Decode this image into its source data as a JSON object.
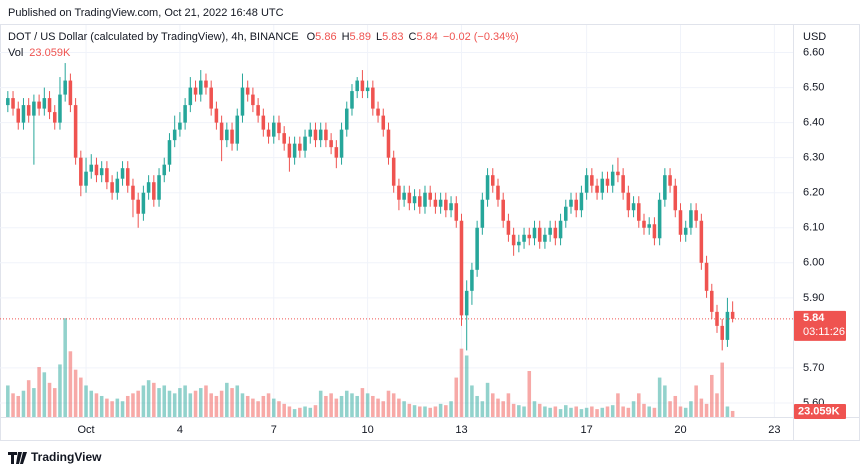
{
  "header": {
    "published": "Published on TradingView.com, Oct 21, 2022 16:48 UTC"
  },
  "footer": {
    "brand": "TradingView"
  },
  "chart_data": {
    "type": "candlestick",
    "title": "DOT / US Dollar (calculated by TradingView), 4h, BINANCE",
    "ohlc_labels": [
      "O",
      "H",
      "L",
      "C"
    ],
    "change_label": "−0.02 (−0.34%)",
    "volume_title": "Vol",
    "last_volume_label": "23.059K",
    "countdown": "03:11:26",
    "currency": "USD",
    "up_color": "#26a69a",
    "down_color": "#ef5350",
    "grid": true,
    "xlim": [
      -1.5,
      150
    ],
    "xticks": [
      {
        "value": 15,
        "label": "Oct"
      },
      {
        "value": 33,
        "label": "4"
      },
      {
        "value": 51,
        "label": "7"
      },
      {
        "value": 69,
        "label": "10"
      },
      {
        "value": 87,
        "label": "13"
      },
      {
        "value": 111,
        "label": "17"
      },
      {
        "value": 129,
        "label": "20"
      },
      {
        "value": 147,
        "label": "23"
      }
    ],
    "ylim": [
      5.56,
      6.67
    ],
    "yticks": [
      {
        "value": 6.6,
        "label": "6.60"
      },
      {
        "value": 6.5,
        "label": "6.50"
      },
      {
        "value": 6.4,
        "label": "6.40"
      },
      {
        "value": 6.3,
        "label": "6.30"
      },
      {
        "value": 6.2,
        "label": "6.20"
      },
      {
        "value": 6.1,
        "label": "6.10"
      },
      {
        "value": 6.0,
        "label": "6.00"
      },
      {
        "value": 5.9,
        "label": "5.90"
      },
      {
        "value": 5.7,
        "label": "5.70"
      },
      {
        "value": 5.6,
        "label": "5.60"
      }
    ],
    "volume_lim": [
      0,
      1480000
    ],
    "open": [
      6.45,
      6.47,
      6.44,
      6.4,
      6.45,
      6.42,
      6.46,
      6.44,
      6.47,
      6.43,
      6.4,
      6.48,
      6.52,
      6.45,
      6.3,
      6.22,
      6.26,
      6.28,
      6.25,
      6.27,
      6.23,
      6.2,
      6.24,
      6.27,
      6.22,
      6.18,
      6.14,
      6.2,
      6.23,
      6.18,
      6.25,
      6.28,
      6.35,
      6.38,
      6.4,
      6.45,
      6.5,
      6.48,
      6.52,
      6.5,
      6.44,
      6.4,
      6.35,
      6.38,
      6.34,
      6.42,
      6.5,
      6.48,
      6.45,
      6.42,
      6.38,
      6.36,
      6.4,
      6.37,
      6.34,
      6.3,
      6.34,
      6.32,
      6.36,
      6.38,
      6.35,
      6.38,
      6.35,
      6.33,
      6.3,
      6.38,
      6.44,
      6.49,
      6.52,
      6.49,
      6.5,
      6.44,
      6.42,
      6.38,
      6.3,
      6.22,
      6.18,
      6.2,
      6.17,
      6.19,
      6.16,
      6.2,
      6.18,
      6.16,
      6.18,
      6.15,
      6.17,
      6.12,
      5.85,
      5.92,
      5.98,
      6.1,
      6.18,
      6.25,
      6.22,
      6.18,
      6.12,
      6.08,
      6.05,
      6.06,
      6.08,
      6.07,
      6.1,
      6.06,
      6.08,
      6.1,
      6.07,
      6.12,
      6.16,
      6.18,
      6.15,
      6.2,
      6.25,
      6.22,
      6.2,
      6.24,
      6.22,
      6.26,
      6.25,
      6.2,
      6.15,
      6.17,
      6.12,
      6.1,
      6.11,
      6.07,
      6.18,
      6.25,
      6.22,
      6.15,
      6.08,
      6.1,
      6.15,
      6.12,
      6.0,
      5.92,
      5.86,
      5.82,
      5.78,
      5.86
    ],
    "high": [
      6.49,
      6.49,
      6.46,
      6.47,
      6.47,
      6.48,
      6.48,
      6.5,
      6.49,
      6.45,
      6.53,
      6.57,
      6.54,
      6.47,
      6.32,
      6.3,
      6.31,
      6.3,
      6.29,
      6.29,
      6.25,
      6.26,
      6.29,
      6.29,
      6.24,
      6.2,
      6.22,
      6.25,
      6.25,
      6.27,
      6.3,
      6.37,
      6.42,
      6.43,
      6.47,
      6.53,
      6.52,
      6.55,
      6.54,
      6.52,
      6.46,
      6.42,
      6.4,
      6.4,
      6.44,
      6.54,
      6.52,
      6.5,
      6.47,
      6.44,
      6.4,
      6.42,
      6.42,
      6.39,
      6.36,
      6.36,
      6.36,
      6.38,
      6.4,
      6.4,
      6.4,
      6.4,
      6.37,
      6.35,
      6.4,
      6.46,
      6.51,
      6.53,
      6.55,
      6.52,
      6.52,
      6.46,
      6.44,
      6.4,
      6.32,
      6.24,
      6.22,
      6.22,
      6.21,
      6.21,
      6.22,
      6.22,
      6.2,
      6.2,
      6.2,
      6.19,
      6.19,
      6.14,
      5.95,
      6.0,
      6.12,
      6.2,
      6.27,
      6.27,
      6.24,
      6.2,
      6.14,
      6.1,
      6.08,
      6.1,
      6.1,
      6.12,
      6.12,
      6.1,
      6.12,
      6.12,
      6.14,
      6.18,
      6.2,
      6.2,
      6.22,
      6.27,
      6.27,
      6.24,
      6.26,
      6.26,
      6.28,
      6.3,
      6.27,
      6.22,
      6.19,
      6.19,
      6.14,
      6.13,
      6.13,
      6.2,
      6.27,
      6.27,
      6.24,
      6.17,
      6.12,
      6.17,
      6.17,
      6.14,
      6.02,
      5.94,
      5.88,
      5.84,
      5.9,
      5.89
    ],
    "low": [
      6.43,
      6.42,
      6.38,
      6.38,
      6.4,
      6.28,
      6.42,
      6.42,
      6.41,
      6.38,
      6.38,
      6.46,
      6.43,
      6.28,
      6.19,
      6.2,
      6.24,
      6.23,
      6.23,
      6.21,
      6.18,
      6.18,
      6.22,
      6.2,
      6.13,
      6.1,
      6.12,
      6.18,
      6.16,
      6.16,
      6.23,
      6.26,
      6.33,
      6.36,
      6.38,
      6.43,
      6.46,
      6.46,
      6.48,
      6.42,
      6.38,
      6.29,
      6.33,
      6.32,
      6.32,
      6.4,
      6.46,
      6.43,
      6.4,
      6.36,
      6.34,
      6.34,
      6.35,
      6.32,
      6.26,
      6.28,
      6.3,
      6.3,
      6.34,
      6.33,
      6.33,
      6.33,
      6.31,
      6.27,
      6.28,
      6.36,
      6.42,
      6.47,
      6.47,
      6.47,
      6.42,
      6.4,
      6.36,
      6.28,
      6.2,
      6.15,
      6.16,
      6.15,
      6.15,
      6.14,
      6.14,
      6.16,
      6.14,
      6.14,
      6.13,
      6.13,
      6.1,
      5.82,
      5.75,
      5.88,
      5.96,
      6.08,
      6.16,
      6.2,
      6.16,
      6.1,
      6.06,
      6.02,
      6.03,
      6.04,
      6.05,
      6.05,
      6.04,
      6.04,
      6.06,
      6.05,
      6.05,
      6.1,
      6.14,
      6.13,
      6.13,
      6.18,
      6.2,
      6.18,
      6.18,
      6.2,
      6.2,
      6.23,
      6.18,
      6.13,
      6.13,
      6.1,
      6.08,
      6.08,
      6.05,
      6.05,
      6.16,
      6.2,
      6.13,
      6.06,
      6.06,
      6.08,
      6.1,
      5.98,
      5.9,
      5.84,
      5.8,
      5.75,
      5.76,
      5.83
    ],
    "close": [
      6.47,
      6.44,
      6.4,
      6.45,
      6.42,
      6.46,
      6.44,
      6.47,
      6.43,
      6.4,
      6.48,
      6.52,
      6.45,
      6.3,
      6.22,
      6.26,
      6.28,
      6.25,
      6.27,
      6.23,
      6.2,
      6.24,
      6.27,
      6.22,
      6.18,
      6.14,
      6.2,
      6.23,
      6.18,
      6.25,
      6.28,
      6.35,
      6.38,
      6.4,
      6.45,
      6.5,
      6.48,
      6.52,
      6.5,
      6.44,
      6.4,
      6.35,
      6.38,
      6.34,
      6.42,
      6.5,
      6.48,
      6.45,
      6.42,
      6.38,
      6.36,
      6.4,
      6.37,
      6.34,
      6.3,
      6.34,
      6.32,
      6.36,
      6.38,
      6.35,
      6.38,
      6.35,
      6.33,
      6.3,
      6.38,
      6.44,
      6.49,
      6.52,
      6.49,
      6.5,
      6.44,
      6.42,
      6.38,
      6.3,
      6.22,
      6.18,
      6.2,
      6.17,
      6.19,
      6.16,
      6.2,
      6.18,
      6.16,
      6.18,
      6.15,
      6.17,
      6.12,
      5.85,
      5.92,
      5.98,
      6.1,
      6.18,
      6.25,
      6.22,
      6.18,
      6.12,
      6.08,
      6.05,
      6.06,
      6.08,
      6.07,
      6.1,
      6.06,
      6.08,
      6.1,
      6.07,
      6.12,
      6.16,
      6.18,
      6.15,
      6.2,
      6.25,
      6.22,
      6.2,
      6.24,
      6.22,
      6.26,
      6.25,
      6.2,
      6.15,
      6.17,
      6.12,
      6.1,
      6.11,
      6.07,
      6.18,
      6.25,
      6.22,
      6.15,
      6.08,
      6.1,
      6.15,
      6.12,
      6.0,
      5.92,
      5.86,
      5.82,
      5.78,
      5.86,
      5.84
    ],
    "volume": [
      120000,
      90000,
      80000,
      100000,
      140000,
      110000,
      190000,
      170000,
      130000,
      110000,
      200000,
      376000,
      250000,
      180000,
      150000,
      120000,
      100000,
      90000,
      80000,
      70000,
      60000,
      70000,
      60000,
      80000,
      90000,
      100000,
      120000,
      140000,
      130000,
      110000,
      120000,
      100000,
      90000,
      110000,
      120000,
      90000,
      100000,
      110000,
      120000,
      90000,
      80000,
      100000,
      130000,
      110000,
      120000,
      90000,
      80000,
      70000,
      60000,
      80000,
      90000,
      70000,
      60000,
      50000,
      40000,
      30000,
      35000,
      40000,
      35000,
      45000,
      100000,
      80000,
      90000,
      70000,
      80000,
      100000,
      90000,
      80000,
      110000,
      90000,
      80000,
      70000,
      60000,
      100000,
      90000,
      70000,
      60000,
      50000,
      45000,
      40000,
      40000,
      35000,
      40000,
      50000,
      45000,
      60000,
      150000,
      260000,
      234000,
      120000,
      80000,
      60000,
      130000,
      90000,
      70000,
      60000,
      90000,
      50000,
      45000,
      40000,
      175000,
      60000,
      50000,
      40000,
      35000,
      40000,
      30000,
      45000,
      35000,
      40000,
      30000,
      35000,
      40000,
      30000,
      35000,
      40000,
      45000,
      90000,
      40000,
      35000,
      60000,
      90000,
      50000,
      40000,
      35000,
      150000,
      120000,
      60000,
      80000,
      40000,
      35000,
      60000,
      120000,
      70000,
      50000,
      160000,
      90000,
      207000,
      40000,
      23059
    ]
  }
}
